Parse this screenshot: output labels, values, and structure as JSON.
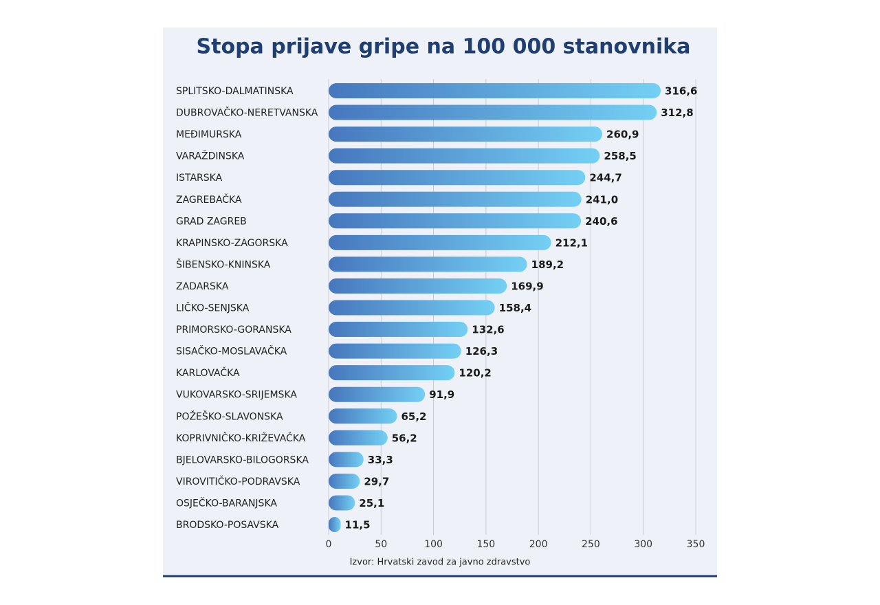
{
  "chart_data": {
    "type": "bar",
    "orientation": "horizontal",
    "title": "Stopa prijave gripe na 100 000 stanovnika",
    "categories": [
      "SPLITSKO-DALMATINSKA",
      "DUBROVAČKO-NERETVANSKA",
      "MEĐIMURSKA",
      "VARAŽDINSKA",
      "ISTARSKA",
      "ZAGREBAČKA",
      "GRAD ZAGREB",
      "KRAPINSKO-ZAGORSKA",
      "ŠIBENSKO-KNINSKA",
      "ZADARSKA",
      "LIČKO-SENJSKA",
      "PRIMORSKO-GORANSKA",
      "SISAČKO-MOSLAVAČKA",
      "KARLOVAČKA",
      "VUKOVARSKO-SRIJEMSKA",
      "POŽEŠKO-SLAVONSKA",
      "KOPRIVNIČKO-KRIŽEVAČKA",
      "BJELOVARSKO-BILOGORSKA",
      "VIROVITIČKO-PODRAVSKA",
      "OSJEČKO-BARANJSKA",
      "BRODSKO-POSAVSKA"
    ],
    "values": [
      316.6,
      312.8,
      260.9,
      258.5,
      244.7,
      241.0,
      240.6,
      212.1,
      189.2,
      169.9,
      158.4,
      132.6,
      126.3,
      120.2,
      91.9,
      65.2,
      56.2,
      33.3,
      29.7,
      25.1,
      11.5
    ],
    "value_labels": [
      "316,6",
      "312,8",
      "260,9",
      "258,5",
      "244,7",
      "241,0",
      "240,6",
      "212,1",
      "189,2",
      "169,9",
      "158,4",
      "132,6",
      "126,3",
      "120,2",
      "91,9",
      "65,2",
      "56,2",
      "33,3",
      "29,7",
      "25,1",
      "11,5"
    ],
    "color": [
      "#4677bd",
      "#74d0f4"
    ],
    "xlim": [
      0,
      350
    ],
    "xticks": [
      0,
      50,
      100,
      150,
      200,
      250,
      300,
      350
    ],
    "grid": true,
    "source": "Izvor: Hrvatski zavod za javno zdravstvo"
  }
}
